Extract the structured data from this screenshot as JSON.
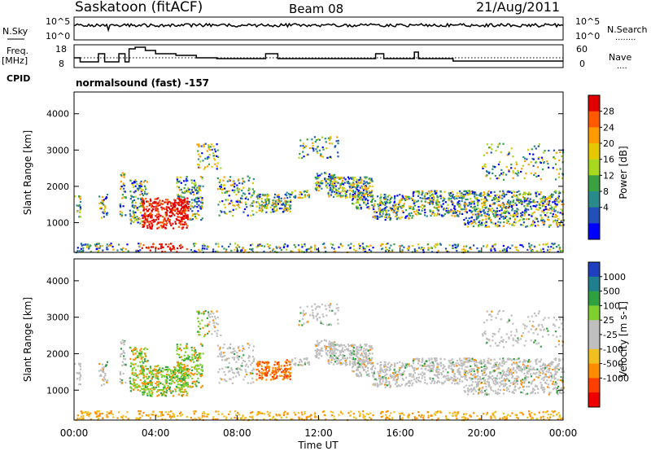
{
  "header": {
    "radar": "Saskatoon (fitACF)",
    "beam": "Beam 08",
    "date": "21/Aug/2011"
  },
  "sky_panel": {
    "left_label": "N.Sky",
    "right_label": "N.Search",
    "right_legend_dotted": "........",
    "ticks": [
      "10^5",
      "10^0"
    ]
  },
  "freq_panel": {
    "left_label_1": "Freq.",
    "left_label_2": "[MHz]",
    "left_ticks": [
      "18",
      "8"
    ],
    "right_label": "Nave",
    "right_legend_dotted": "....",
    "right_ticks": [
      "60",
      "0"
    ]
  },
  "cpid": {
    "label": "CPID",
    "text": "normalsound (fast) -157"
  },
  "chart_data": {
    "type": "heatmap",
    "time_axis": {
      "label": "Time UT",
      "ticks": [
        "00:00",
        "04:00",
        "08:00",
        "12:00",
        "16:00",
        "20:00",
        "00:00"
      ],
      "range_hours": [
        0,
        24
      ]
    },
    "range_axis": {
      "label": "Slant Range [km]",
      "ticks": [
        1000,
        2000,
        3000,
        4000
      ],
      "range_km": [
        180,
        4600
      ]
    },
    "panels": [
      {
        "name": "power",
        "colorbar_label": "Power [dB]",
        "colorbar_ticks": [
          "28",
          "24",
          "20",
          "16",
          "12",
          "8",
          "4"
        ],
        "colorbar_colors": [
          "#e00000",
          "#ff5a00",
          "#ff9a00",
          "#e6c800",
          "#a8d820",
          "#3aa042",
          "#2a8a8a",
          "#2050b8",
          "#0000ff"
        ]
      },
      {
        "name": "velocity",
        "colorbar_label": "Velocity [m s-1]",
        "colorbar_ticks": [
          "1000",
          "500",
          "100",
          "25",
          "-25",
          "-100",
          "-500",
          "-1000"
        ],
        "colorbar_colors": [
          "#1f3fbf",
          "#1f7f8f",
          "#2fa03f",
          "#7fd02f",
          "#bfbfbf",
          "#bfbfbf",
          "#f0c020",
          "#ff8c00",
          "#ff3f00",
          "#ee0000"
        ]
      }
    ]
  }
}
